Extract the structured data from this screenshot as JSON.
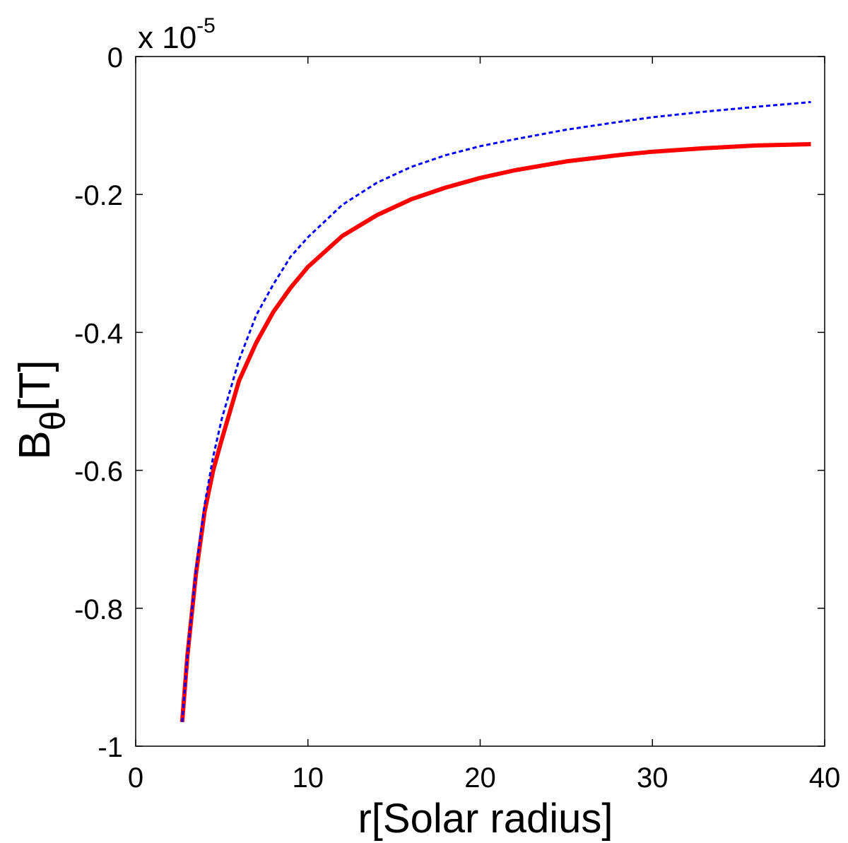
{
  "chart_data": {
    "type": "line",
    "xlabel": "r[Solar radius]",
    "ylabel_main": "B",
    "ylabel_sub": "θ",
    "ylabel_unit": "[T]",
    "y_multiplier": "x 10",
    "y_multiplier_exp": "-5",
    "xlim": [
      0,
      40
    ],
    "ylim": [
      -1,
      0
    ],
    "x_ticks": [
      0,
      10,
      20,
      30,
      40
    ],
    "x_tick_labels": [
      "0",
      "10",
      "20",
      "30",
      "40"
    ],
    "y_ticks": [
      0,
      -0.2,
      -0.4,
      -0.6,
      -0.8,
      -1
    ],
    "y_tick_labels": [
      "0",
      "-0.2",
      "-0.4",
      "-0.6",
      "-0.8",
      "-1"
    ],
    "grid": false,
    "series": [
      {
        "color": "#ff0000",
        "style": "solid",
        "x": [
          2.7,
          3.0,
          3.5,
          4.0,
          4.5,
          5.0,
          6.0,
          7.0,
          8.0,
          9.0,
          10.0,
          12.0,
          14.0,
          16.0,
          18.0,
          20.0,
          22.0,
          25.0,
          28.0,
          30.0,
          33.0,
          36.0,
          39.2
        ],
        "y": [
          -0.965,
          -0.87,
          -0.75,
          -0.66,
          -0.6,
          -0.555,
          -0.47,
          -0.415,
          -0.37,
          -0.335,
          -0.305,
          -0.26,
          -0.23,
          -0.207,
          -0.19,
          -0.176,
          -0.165,
          -0.152,
          -0.143,
          -0.138,
          -0.133,
          -0.129,
          -0.127
        ]
      },
      {
        "color": "#0000ff",
        "style": "dashed",
        "x": [
          2.7,
          3.0,
          3.5,
          4.0,
          4.5,
          5.0,
          6.0,
          7.0,
          8.0,
          9.0,
          10.0,
          12.0,
          14.0,
          16.0,
          18.0,
          20.0,
          22.0,
          25.0,
          28.0,
          30.0,
          33.0,
          36.0,
          39.2
        ],
        "y": [
          -0.965,
          -0.87,
          -0.745,
          -0.65,
          -0.58,
          -0.525,
          -0.44,
          -0.375,
          -0.33,
          -0.29,
          -0.262,
          -0.215,
          -0.183,
          -0.16,
          -0.143,
          -0.13,
          -0.12,
          -0.106,
          -0.095,
          -0.088,
          -0.08,
          -0.073,
          -0.066
        ]
      }
    ]
  }
}
